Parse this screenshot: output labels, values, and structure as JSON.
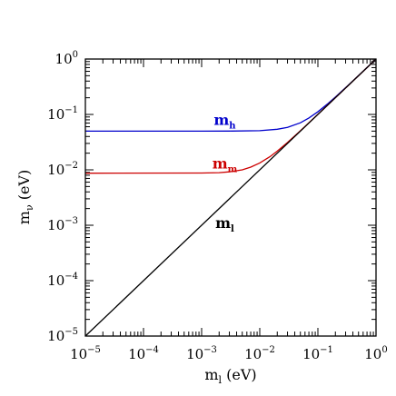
{
  "chart_data": {
    "type": "line",
    "xscale": "log",
    "yscale": "log",
    "xlim": [
      1e-05,
      1
    ],
    "ylim": [
      1e-05,
      1
    ],
    "grid": false,
    "legend": "none",
    "xlabel": {
      "base": "m",
      "sub": "l",
      "unit": " (eV)"
    },
    "ylabel": {
      "base": "m",
      "sub": "ν",
      "unit": " (eV)"
    },
    "x_ticks": [
      {
        "value": 1e-05,
        "base": "10",
        "exp": "−5"
      },
      {
        "value": 0.0001,
        "base": "10",
        "exp": "−4"
      },
      {
        "value": 0.001,
        "base": "10",
        "exp": "−3"
      },
      {
        "value": 0.01,
        "base": "10",
        "exp": "−2"
      },
      {
        "value": 0.1,
        "base": "10",
        "exp": "−1"
      },
      {
        "value": 1,
        "base": "10",
        "exp": "0"
      }
    ],
    "y_ticks": [
      {
        "value": 1e-05,
        "base": "10",
        "exp": "−5"
      },
      {
        "value": 0.0001,
        "base": "10",
        "exp": "−4"
      },
      {
        "value": 0.001,
        "base": "10",
        "exp": "−3"
      },
      {
        "value": 0.01,
        "base": "10",
        "exp": "−2"
      },
      {
        "value": 0.1,
        "base": "10",
        "exp": "−1"
      },
      {
        "value": 1,
        "base": "10",
        "exp": "0"
      }
    ],
    "series": [
      {
        "label": {
          "base": "m",
          "sub": "h"
        },
        "color": "#0000cc",
        "label_at": {
          "x": 0.0025,
          "y": 0.065
        },
        "points": [
          [
            1e-05,
            0.05
          ],
          [
            0.001,
            0.05
          ],
          [
            0.003,
            0.0501
          ],
          [
            0.01,
            0.051
          ],
          [
            0.02,
            0.054
          ],
          [
            0.03,
            0.0583
          ],
          [
            0.05,
            0.0707
          ],
          [
            0.07,
            0.0863
          ],
          [
            0.1,
            0.1118
          ],
          [
            0.15,
            0.158
          ],
          [
            0.2,
            0.206
          ],
          [
            0.3,
            0.304
          ],
          [
            0.5,
            0.502
          ],
          [
            0.7,
            0.702
          ],
          [
            1,
            1.001
          ]
        ]
      },
      {
        "label": {
          "base": "m",
          "sub": "m"
        },
        "color": "#cc0000",
        "label_at": {
          "x": 0.0025,
          "y": 0.0105
        },
        "points": [
          [
            1e-05,
            0.0087
          ],
          [
            0.001,
            0.00876
          ],
          [
            0.002,
            0.0089
          ],
          [
            0.003,
            0.0092
          ],
          [
            0.005,
            0.01
          ],
          [
            0.007,
            0.0112
          ],
          [
            0.01,
            0.0133
          ],
          [
            0.015,
            0.0173
          ],
          [
            0.02,
            0.0218
          ],
          [
            0.03,
            0.0312
          ],
          [
            0.05,
            0.0507
          ],
          [
            0.1,
            0.1004
          ],
          [
            0.3,
            0.3001
          ],
          [
            1,
            1
          ]
        ]
      },
      {
        "label": {
          "base": "m",
          "sub": "l"
        },
        "color": "#000000",
        "label_at": {
          "x": 0.0025,
          "y": 0.0009
        },
        "points": [
          [
            1e-05,
            1e-05
          ],
          [
            1,
            1
          ]
        ]
      }
    ]
  }
}
